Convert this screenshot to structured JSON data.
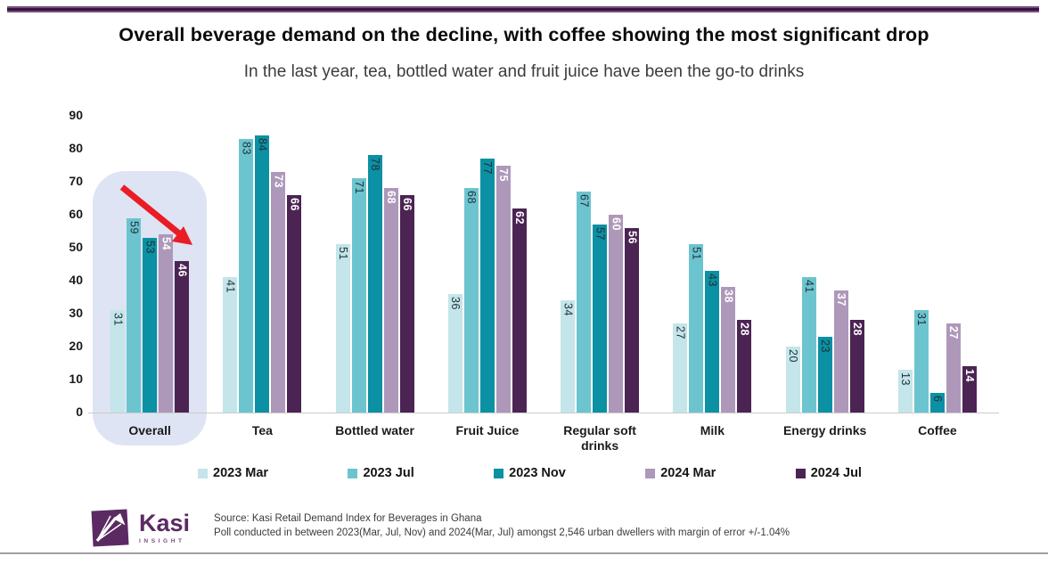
{
  "header": {
    "title": "Overall beverage demand on the decline, with coffee showing the most significant drop",
    "subtitle": "In the last year, tea, bottled water and fruit juice have been the go-to drinks"
  },
  "chart_data": {
    "type": "bar",
    "title": "Overall beverage demand on the decline, with coffee showing the most significant drop",
    "categories": [
      "Overall",
      "Tea",
      "Bottled water",
      "Fruit Juice",
      "Regular soft drinks",
      "Milk",
      "Energy drinks",
      "Coffee"
    ],
    "series": [
      {
        "name": "2023 Mar",
        "color": "#c4e5e9",
        "label_color": "dark",
        "values": [
          31,
          41,
          51,
          36,
          34,
          27,
          20,
          13
        ]
      },
      {
        "name": "2023 Jul",
        "color": "#6cc4cf",
        "label_color": "dark",
        "values": [
          59,
          83,
          71,
          68,
          67,
          51,
          41,
          31
        ]
      },
      {
        "name": "2023 Nov",
        "color": "#0c90a3",
        "label_color": "dark",
        "values": [
          53,
          84,
          78,
          77,
          57,
          43,
          23,
          6
        ]
      },
      {
        "name": "2024 Mar",
        "color": "#ae98ba",
        "label_color": "light",
        "values": [
          54,
          73,
          68,
          75,
          60,
          38,
          37,
          27
        ]
      },
      {
        "name": "2024 Jul",
        "color": "#4b2453",
        "label_color": "light",
        "values": [
          46,
          66,
          66,
          62,
          56,
          28,
          28,
          14
        ]
      }
    ],
    "ylim": [
      0,
      90
    ],
    "yticks": [
      0,
      10,
      20,
      30,
      40,
      50,
      60,
      70,
      80,
      90
    ],
    "xlabel": "",
    "ylabel": "",
    "grid": false,
    "legend_position": "bottom",
    "annotations": {
      "highlighted_category": "Overall",
      "arrow": "red downward trend arrow over Overall group",
      "arrow_color": "#ea1c24",
      "highlight_color": "#dee4f3"
    }
  },
  "footer": {
    "logo_name": "Kasi",
    "logo_tagline": "INSIGHT",
    "source_line1": "Source: Kasi Retail Demand Index for Beverages in Ghana",
    "source_line2": "Poll conducted  in between 2023(Mar, Jul, Nov) and 2024(Mar, Jul) amongst 2,546  urban dwellers with margin of error +/-1.04%"
  }
}
